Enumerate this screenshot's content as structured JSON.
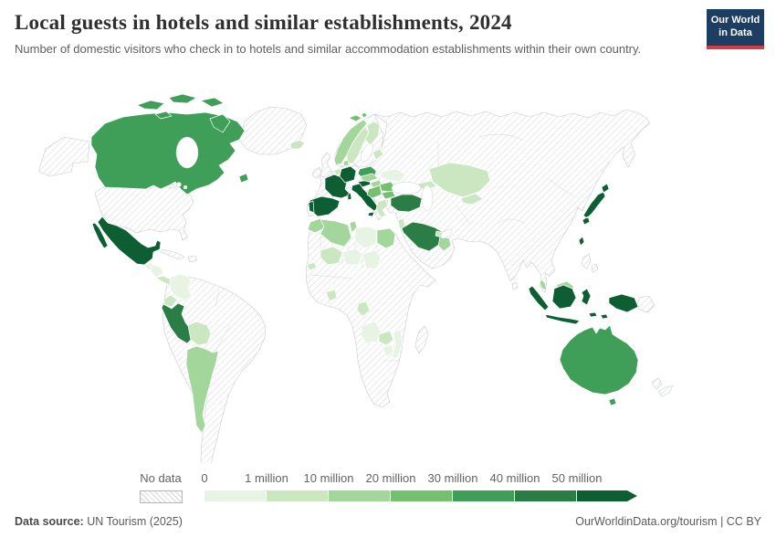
{
  "header": {
    "title": "Local guests in hotels and similar establishments, 2024",
    "subtitle": "Number of domestic visitors who check in to hotels and similar accommodation establishments within their own country.",
    "logo": {
      "line1": "Our World",
      "line2": "in Data",
      "bg_color": "#1d3d63",
      "accent_color": "#cf3e4b"
    }
  },
  "legend": {
    "no_data_label": "No data",
    "tick_labels": [
      "0",
      "1 million",
      "10 million",
      "20 million",
      "30 million",
      "40 million",
      "50 million"
    ],
    "colors": [
      "#e8f4e3",
      "#cbe7c1",
      "#a2d69a",
      "#74c06f",
      "#3f9e58",
      "#2a7d44",
      "#0d5f33"
    ]
  },
  "footer": {
    "source_label": "Data source:",
    "source_value": " UN Tourism (2025)",
    "credit": "OurWorldinData.org/tourism | CC BY"
  },
  "map_data": {
    "type": "choropleth-world-map",
    "metric": "Local guests in hotels and similar establishments, 2024",
    "bucket_labels": {
      "no-data": "No data",
      "b0": "0–1 million",
      "b1": "1–10 million",
      "b2": "10–20 million",
      "b3": "20–30 million",
      "b4": "30–40 million",
      "b5": "40–50 million",
      "b6": "50+ million"
    },
    "bucket_colors": {
      "no-data": "hatch",
      "b0": "#e8f4e3",
      "b1": "#cbe7c1",
      "b2": "#a2d69a",
      "b3": "#74c06f",
      "b4": "#3f9e58",
      "b5": "#2a7d44",
      "b6": "#0d5f33"
    },
    "countries": {
      "canada": {
        "name": "Canada",
        "bucket": "b4"
      },
      "mexico": {
        "name": "Mexico",
        "bucket": "b6"
      },
      "guatemala": {
        "name": "Guatemala",
        "bucket": "b0"
      },
      "honduras-nicaragua": {
        "name": "Honduras & Nicaragua",
        "bucket": "b0"
      },
      "costa-rica-panama": {
        "name": "Costa Rica & Panama",
        "bucket": "b1"
      },
      "colombia": {
        "name": "Colombia",
        "bucket": "b0"
      },
      "ecuador": {
        "name": "Ecuador",
        "bucket": "b1"
      },
      "peru": {
        "name": "Peru",
        "bucket": "b5"
      },
      "bolivia": {
        "name": "Bolivia",
        "bucket": "b1"
      },
      "argentina": {
        "name": "Argentina",
        "bucket": "b2"
      },
      "iceland": {
        "name": "Iceland",
        "bucket": "b1"
      },
      "norway": {
        "name": "Norway",
        "bucket": "b2"
      },
      "svalbard": {
        "name": "Svalbard",
        "bucket": "b3"
      },
      "sweden": {
        "name": "Sweden",
        "bucket": "b1"
      },
      "finland": {
        "name": "Finland",
        "bucket": "b1"
      },
      "denmark": {
        "name": "Denmark",
        "bucket": "b2"
      },
      "baltic-states": {
        "name": "Baltic states",
        "bucket": "b1"
      },
      "belgium-netherlands": {
        "name": "Belgium & Netherlands",
        "bucket": "b1"
      },
      "france": {
        "name": "France",
        "bucket": "b6"
      },
      "spain": {
        "name": "Spain",
        "bucket": "b6"
      },
      "portugal": {
        "name": "Portugal",
        "bucket": "b6"
      },
      "germany": {
        "name": "Germany",
        "bucket": "b6"
      },
      "austria": {
        "name": "Austria",
        "bucket": "b6"
      },
      "italy": {
        "name": "Italy",
        "bucket": "b6"
      },
      "poland": {
        "name": "Poland",
        "bucket": "b4"
      },
      "czechia-slovakia": {
        "name": "Czechia & Slovakia",
        "bucket": "b2"
      },
      "hungary": {
        "name": "Hungary",
        "bucket": "b2"
      },
      "western-balkans": {
        "name": "Western Balkans",
        "bucket": "b3"
      },
      "romania": {
        "name": "Romania",
        "bucket": "b3"
      },
      "bulgaria": {
        "name": "Bulgaria",
        "bucket": "b3"
      },
      "greece": {
        "name": "Greece",
        "bucket": "b1"
      },
      "ukraine": {
        "name": "Ukraine",
        "bucket": "b0"
      },
      "turkey": {
        "name": "Turkey",
        "bucket": "b5"
      },
      "caucasus": {
        "name": "Caucasus",
        "bucket": "b1"
      },
      "kazakhstan": {
        "name": "Kazakhstan",
        "bucket": "b1"
      },
      "uzbekistan-kyrgyzstan": {
        "name": "Uzbekistan & Kyrgyzstan",
        "bucket": "b1"
      },
      "israel-jordan": {
        "name": "Israel & Jordan",
        "bucket": "b1"
      },
      "saudi-arabia": {
        "name": "Saudi Arabia",
        "bucket": "b5"
      },
      "uae-qatar": {
        "name": "UAE & Qatar",
        "bucket": "b1"
      },
      "oman": {
        "name": "Oman",
        "bucket": "b2"
      },
      "morocco": {
        "name": "Morocco",
        "bucket": "b2"
      },
      "algeria": {
        "name": "Algeria",
        "bucket": "b2"
      },
      "tunisia": {
        "name": "Tunisia",
        "bucket": "b2"
      },
      "libya": {
        "name": "Libya",
        "bucket": "b0"
      },
      "egypt": {
        "name": "Egypt",
        "bucket": "b2"
      },
      "senegal": {
        "name": "Senegal",
        "bucket": "b1"
      },
      "mali": {
        "name": "Mali",
        "bucket": "b1"
      },
      "niger": {
        "name": "Niger",
        "bucket": "b0"
      },
      "chad": {
        "name": "Chad",
        "bucket": "b0"
      },
      "ghana-cote-divoire": {
        "name": "Ghana & Côte d'Ivoire",
        "bucket": "b1"
      },
      "cameroon-gabon": {
        "name": "Cameroon & Gabon",
        "bucket": "b1"
      },
      "angola": {
        "name": "Angola",
        "bucket": "b0"
      },
      "zambia": {
        "name": "Zambia",
        "bucket": "b1"
      },
      "zimbabwe": {
        "name": "Zimbabwe",
        "bucket": "b0"
      },
      "mozambique": {
        "name": "Mozambique",
        "bucket": "b0"
      },
      "japan": {
        "name": "Japan",
        "bucket": "b6"
      },
      "taiwan": {
        "name": "Taiwan",
        "bucket": "b6"
      },
      "malaysia": {
        "name": "Malaysia",
        "bucket": "b2"
      },
      "indonesia": {
        "name": "Indonesia",
        "bucket": "b6"
      },
      "australia": {
        "name": "Australia",
        "bucket": "b4"
      },
      "united-states": {
        "name": "United States",
        "bucket": "no-data"
      },
      "greenland": {
        "name": "Greenland",
        "bucket": "no-data"
      },
      "cuba": {
        "name": "Cuba",
        "bucket": "no-data"
      },
      "hispaniola": {
        "name": "Hispaniola",
        "bucket": "no-data"
      },
      "brazil": {
        "name": "Brazil",
        "bucket": "no-data"
      },
      "venezuela": {
        "name": "Venezuela",
        "bucket": "no-data"
      },
      "chile": {
        "name": "Chile",
        "bucket": "no-data"
      },
      "united-kingdom": {
        "name": "United Kingdom",
        "bucket": "no-data"
      },
      "ireland": {
        "name": "Ireland",
        "bucket": "no-data"
      },
      "russia": {
        "name": "Russia",
        "bucket": "no-data"
      },
      "china": {
        "name": "China",
        "bucket": "no-data"
      },
      "india": {
        "name": "India",
        "bucket": "no-data"
      },
      "sri-lanka": {
        "name": "Sri Lanka",
        "bucket": "no-data"
      },
      "south-korea": {
        "name": "South Korea",
        "bucket": "no-data"
      },
      "philippines": {
        "name": "Philippines",
        "bucket": "no-data"
      },
      "papua-new-guinea": {
        "name": "Papua New Guinea",
        "bucket": "no-data"
      },
      "new-zealand": {
        "name": "New Zealand",
        "bucket": "no-data"
      },
      "madagascar": {
        "name": "Madagascar",
        "bucket": "no-data"
      },
      "south-africa": {
        "name": "South Africa",
        "bucket": "no-data"
      }
    }
  }
}
